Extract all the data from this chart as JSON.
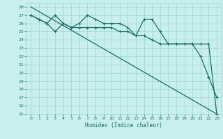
{
  "xlabel": "Humidex (Indice chaleur)",
  "bg_color": "#c8eeed",
  "grid_color": "#9dd4d0",
  "line_color": "#1a6e62",
  "xlim": [
    -0.5,
    23.5
  ],
  "ylim": [
    15,
    28.5
  ],
  "xticks": [
    0,
    1,
    2,
    3,
    4,
    5,
    6,
    7,
    8,
    9,
    10,
    11,
    12,
    13,
    14,
    15,
    16,
    17,
    18,
    19,
    20,
    21,
    22,
    23
  ],
  "yticks": [
    15,
    16,
    17,
    18,
    19,
    20,
    21,
    22,
    23,
    24,
    25,
    26,
    27,
    28
  ],
  "line1_x": [
    0,
    23
  ],
  "line1_y": [
    28,
    15
  ],
  "line2_x": [
    0,
    1,
    2,
    3,
    4,
    5,
    6,
    7,
    8,
    9,
    10,
    11,
    12,
    13,
    14,
    15,
    16,
    17,
    18,
    19,
    20,
    21,
    22,
    23
  ],
  "line2_y": [
    27,
    26.5,
    26.0,
    27.0,
    26.0,
    25.5,
    26.0,
    27.0,
    26.5,
    26.0,
    26.0,
    26.0,
    25.5,
    24.5,
    26.5,
    26.5,
    25.0,
    23.5,
    23.5,
    23.5,
    23.5,
    22.0,
    19.5,
    17.0
  ],
  "line3_x": [
    0,
    1,
    2,
    3,
    4,
    5,
    6,
    7,
    8,
    9,
    10,
    11,
    12,
    13,
    14,
    15,
    16,
    17,
    18,
    19,
    20,
    21,
    22,
    23
  ],
  "line3_y": [
    27,
    26.5,
    26.0,
    25.0,
    26.0,
    25.5,
    25.5,
    25.5,
    25.5,
    25.5,
    25.5,
    25.0,
    25.0,
    24.5,
    24.5,
    24.0,
    23.5,
    23.5,
    23.5,
    23.5,
    23.5,
    23.5,
    23.5,
    15.0
  ]
}
